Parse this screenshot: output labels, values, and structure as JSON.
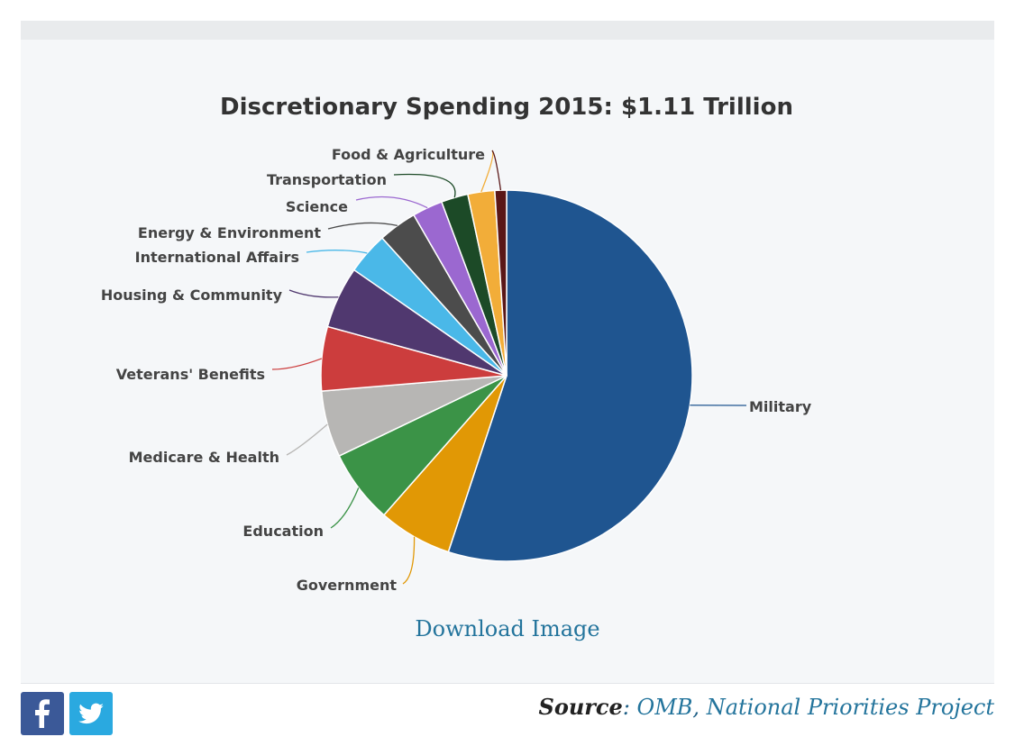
{
  "chart_data": {
    "type": "pie",
    "title": "Discretionary Spending 2015: $1.11 Trillion",
    "unit": "percent of total (estimated)",
    "slices": [
      {
        "name": "Military",
        "value": 54.2,
        "color": "#1f5590"
      },
      {
        "name": "Government",
        "value": 6.3,
        "color": "#e19805"
      },
      {
        "name": "Education",
        "value": 6.3,
        "color": "#3b9347"
      },
      {
        "name": "Medicare & Health",
        "value": 5.7,
        "color": "#b7b6b4"
      },
      {
        "name": "Veterans' Benefits",
        "value": 5.5,
        "color": "#cc3d3d"
      },
      {
        "name": "Housing & Community",
        "value": 5.3,
        "color": "#50386f"
      },
      {
        "name": "International Affairs",
        "value": 3.6,
        "color": "#4ab8e8"
      },
      {
        "name": "Energy & Environment",
        "value": 3.3,
        "color": "#4c4c4c"
      },
      {
        "name": "Science",
        "value": 2.6,
        "color": "#9b68d0"
      },
      {
        "name": "Transportation",
        "value": 2.3,
        "color": "#1c4a27"
      },
      {
        "name": "Food & Agriculture",
        "value": 2.3,
        "color": "#f2ad39"
      },
      {
        "name": "Unlabeled",
        "value": 1.0,
        "color": "#5a1717"
      }
    ],
    "label_for_last_slice_is_shared": "Food & Agriculture"
  },
  "download_label": "Download Image",
  "share": {
    "facebook_icon": "facebook-icon",
    "twitter_icon": "twitter-icon",
    "facebook_color": "#3b5998",
    "twitter_color": "#2aa9e0"
  },
  "source": {
    "label": "Source",
    "separator": ": ",
    "omb": "OMB",
    "comma": ", ",
    "npp": "National Priorities Project"
  }
}
